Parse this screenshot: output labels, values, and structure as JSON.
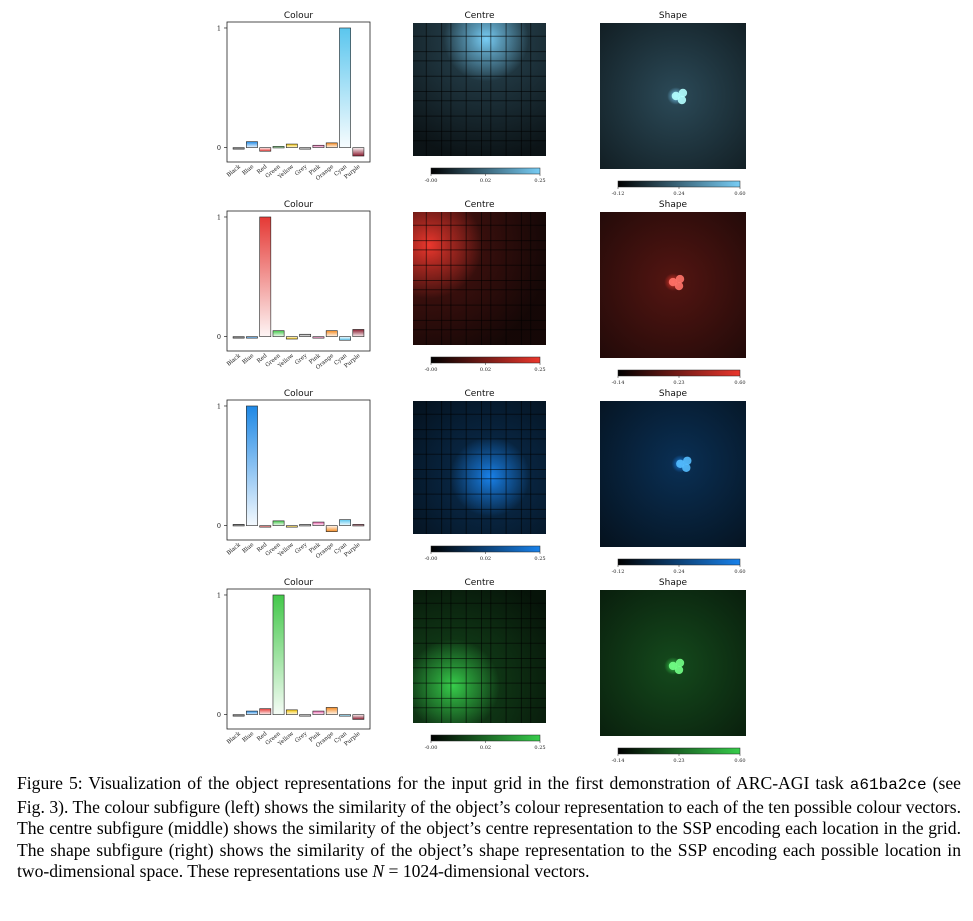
{
  "categories": [
    "Black",
    "Blue",
    "Red",
    "Green",
    "Yellow",
    "Grey",
    "Pink",
    "Orange",
    "Cyan",
    "Purple"
  ],
  "panel_titles": {
    "colour": "Colour",
    "centre": "Centre",
    "shape": "Shape"
  },
  "rows": [
    {
      "accent": "#3fb6ea",
      "heat_color": [
        120,
        205,
        245
      ],
      "chart_data": {
        "type": "bar",
        "title": "Colour",
        "categories": [
          "Black",
          "Blue",
          "Red",
          "Green",
          "Yellow",
          "Grey",
          "Pink",
          "Orange",
          "Cyan",
          "Purple"
        ],
        "values": [
          -0.01,
          0.05,
          -0.03,
          0.01,
          0.03,
          -0.01,
          0.02,
          0.04,
          1.0,
          -0.07
        ],
        "yticks": [
          "0",
          "1"
        ],
        "ylim": [
          -0.12,
          1.05
        ]
      },
      "centre": {
        "blob": [
          0.55,
          0.12,
          0.32
        ],
        "ticks": [
          "-0.00",
          "0.02",
          "0.25"
        ]
      },
      "shape": {
        "blob": [
          0.52,
          0.5,
          0.06
        ],
        "ticks": [
          "-0.12",
          "0.24",
          "0.60"
        ]
      }
    },
    {
      "accent": "#ea3f3f",
      "heat_color": [
        235,
        55,
        45
      ],
      "chart_data": {
        "type": "bar",
        "title": "Colour",
        "categories": [
          "Black",
          "Blue",
          "Red",
          "Green",
          "Yellow",
          "Grey",
          "Pink",
          "Orange",
          "Cyan",
          "Purple"
        ],
        "values": [
          -0.01,
          -0.01,
          1.0,
          0.05,
          -0.02,
          0.02,
          -0.01,
          0.05,
          -0.03,
          0.06
        ],
        "yticks": [
          "0",
          "1"
        ],
        "ylim": [
          -0.12,
          1.05
        ]
      },
      "centre": {
        "blob": [
          0.12,
          0.25,
          0.4
        ],
        "ticks": [
          "-0.00",
          "0.02",
          "0.25"
        ]
      },
      "shape": {
        "blob": [
          0.5,
          0.48,
          0.06
        ],
        "ticks": [
          "-0.14",
          "0.23",
          "0.60"
        ]
      }
    },
    {
      "accent": "#1e7fd8",
      "heat_color": [
        25,
        130,
        235
      ],
      "chart_data": {
        "type": "bar",
        "title": "Colour",
        "categories": [
          "Black",
          "Blue",
          "Red",
          "Green",
          "Yellow",
          "Grey",
          "Pink",
          "Orange",
          "Cyan",
          "Purple"
        ],
        "values": [
          0.01,
          1.0,
          -0.01,
          0.04,
          -0.01,
          0.01,
          0.03,
          -0.05,
          0.05,
          0.01
        ],
        "yticks": [
          "0",
          "1"
        ],
        "ylim": [
          -0.12,
          1.05
        ]
      },
      "centre": {
        "blob": [
          0.58,
          0.57,
          0.3
        ],
        "ticks": [
          "-0.00",
          "0.02",
          "0.25"
        ]
      },
      "shape": {
        "blob": [
          0.55,
          0.43,
          0.06
        ],
        "ticks": [
          "-0.12",
          "0.24",
          "0.60"
        ]
      }
    },
    {
      "accent": "#35c84a",
      "heat_color": [
        55,
        205,
        75
      ],
      "chart_data": {
        "type": "bar",
        "title": "Colour",
        "categories": [
          "Black",
          "Blue",
          "Red",
          "Green",
          "Yellow",
          "Grey",
          "Pink",
          "Orange",
          "Cyan",
          "Purple"
        ],
        "values": [
          -0.01,
          0.03,
          0.05,
          1.0,
          0.04,
          -0.01,
          0.03,
          0.06,
          -0.01,
          -0.04
        ],
        "yticks": [
          "0",
          "1"
        ],
        "ylim": [
          -0.12,
          1.05
        ]
      },
      "centre": {
        "blob": [
          0.3,
          0.72,
          0.35
        ],
        "ticks": [
          "-0.00",
          "0.02",
          "0.25"
        ]
      },
      "shape": {
        "blob": [
          0.5,
          0.52,
          0.06
        ],
        "ticks": [
          "-0.14",
          "0.23",
          "0.60"
        ]
      }
    }
  ],
  "bar_colors": {
    "Black": "#333333",
    "Blue": "#1e88e5",
    "Red": "#e53935",
    "Green": "#43c84a",
    "Yellow": "#f2c200",
    "Grey": "#9a9a9a",
    "Pink": "#e85aa8",
    "Orange": "#f58a1f",
    "Cyan": "#5bc6ee",
    "Purple": "#8a1a2e"
  },
  "caption": {
    "part1": "Figure 5: Visualization of the object representations for the input grid in the first demonstration of ARC-AGI task ",
    "task_id": "a61ba2ce",
    "part2": " (see Fig. 3). The colour subfigure (left) shows the similarity of the object’s colour representation to each of the ten possible colour vectors. The centre subfigure (middle) shows the similarity of the object’s centre representation to the SSP encoding each location in the grid. The shape subfigure (right) shows the similarity of the object’s shape representation to the SSP encoding each possible location in two-dimensional space. These representations use ",
    "math": "N",
    "part3": " = 1024-dimensional vectors."
  }
}
